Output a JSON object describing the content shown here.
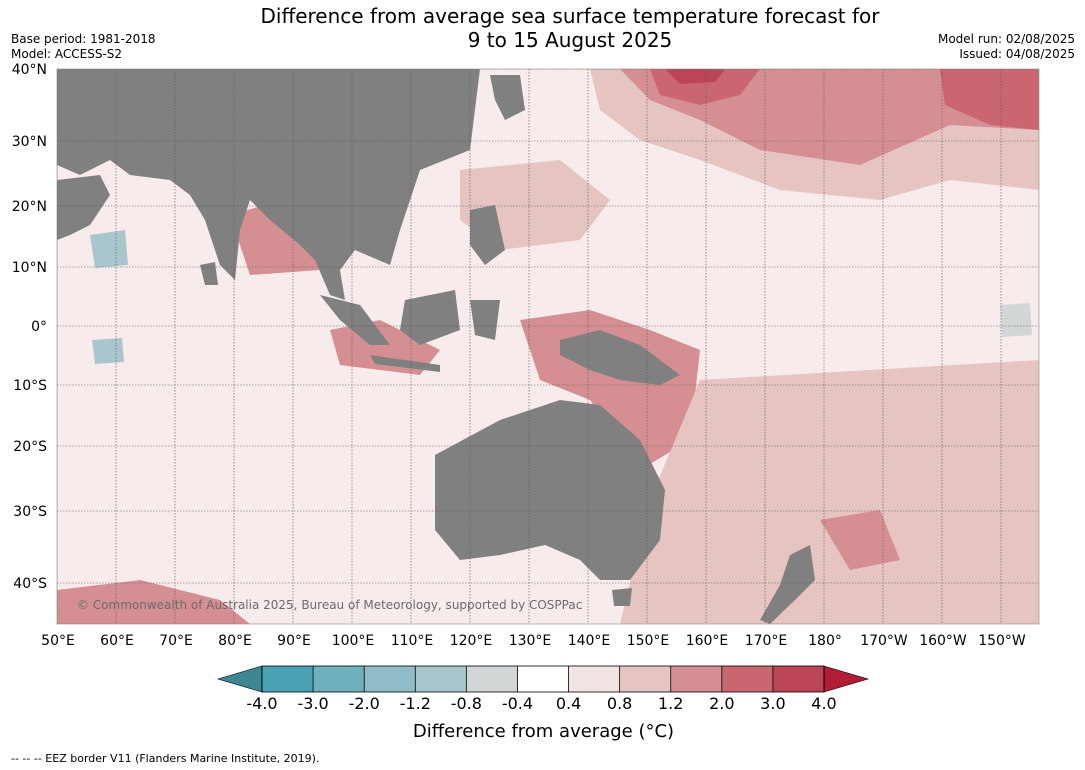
{
  "title": {
    "line1": "Difference from average sea surface temperature forecast for",
    "line2": "9 to 15 August 2025"
  },
  "meta_left": {
    "base_period": "Base period: 1981-2018",
    "model": "Model: ACCESS-S2"
  },
  "meta_right": {
    "model_run": "Model run: 02/08/2025",
    "issued": "Issued: 04/08/2025"
  },
  "copyright": "© Commonwealth of Australia 2025, Bureau of Meteorology, supported by COSPPac",
  "lat_labels": [
    "40°N",
    "30°N",
    "20°N",
    "10°N",
    "0°",
    "10°S",
    "20°S",
    "30°S",
    "40°S"
  ],
  "lon_labels": [
    "50°E",
    "60°E",
    "70°E",
    "80°E",
    "90°E",
    "100°E",
    "110°E",
    "120°E",
    "130°E",
    "140°E",
    "150°E",
    "160°E",
    "170°E",
    "180°",
    "170°W",
    "160°W",
    "150°W"
  ],
  "colorbar": {
    "ticks": [
      "-4.0",
      "-3.0",
      "-2.0",
      "-1.2",
      "-0.8",
      "-0.4",
      "0.4",
      "0.8",
      "1.2",
      "2.0",
      "3.0",
      "4.0"
    ],
    "colors": [
      "#4aa1b4",
      "#6fb0bf",
      "#8fbcc6",
      "#aac6cd",
      "#d3d6d7",
      "#ffffff",
      "#f2e4e3",
      "#e6c4c1",
      "#d58f93",
      "#c96670",
      "#bb4555"
    ],
    "under_color": "#3d8793",
    "over_color": "#b01d35",
    "label": "Difference from average (°C)"
  },
  "footer": "--  --  -- EEZ border V11 (Flanders Marine Institute, 2019).",
  "colors": {
    "land": "#808080",
    "grid": "#555555"
  }
}
